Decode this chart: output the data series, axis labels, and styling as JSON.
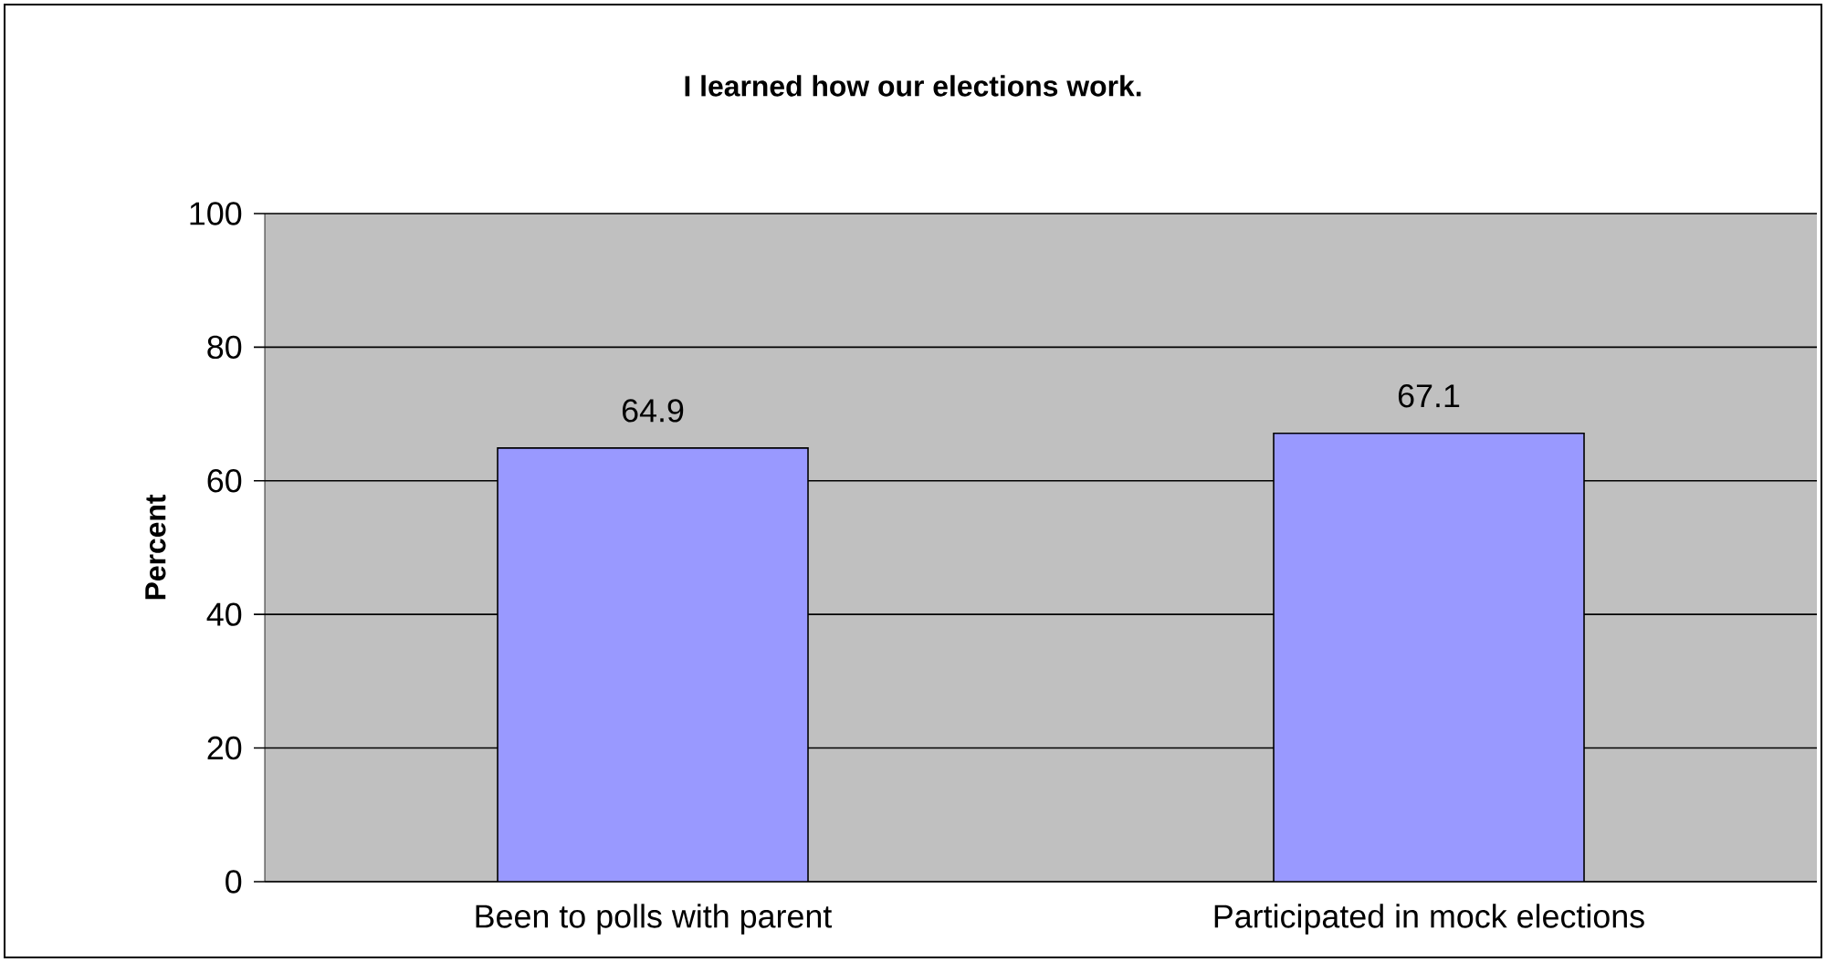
{
  "chart_data": {
    "type": "bar",
    "title": "I learned how our elections work.",
    "ylabel": "Percent",
    "categories": [
      "Been to polls with parent",
      "Participated in mock elections"
    ],
    "values": [
      64.9,
      67.1
    ],
    "color": "#9999ff",
    "ylim": [
      0,
      100
    ],
    "yticks": [
      0,
      20,
      40,
      60,
      80,
      100
    ],
    "grid": "y",
    "data_labels": true
  }
}
